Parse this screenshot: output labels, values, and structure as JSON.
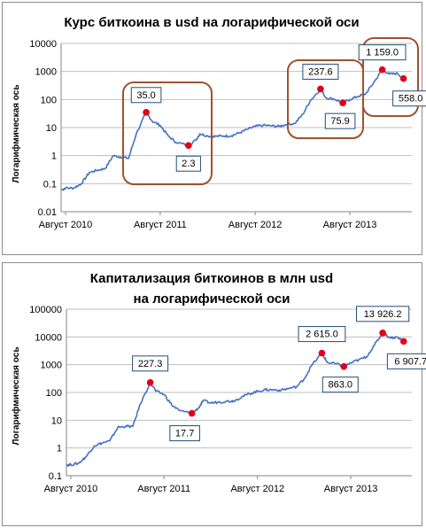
{
  "chart_data": [
    {
      "type": "line",
      "title": "Курс биткоина в usd на логарифической оси",
      "ylabel": "Логарифмическая ось",
      "yscale": "log",
      "ylim": [
        0.01,
        10000
      ],
      "y_ticks": [
        "0.01",
        "0.1",
        "1",
        "10",
        "100",
        "1000",
        "10000"
      ],
      "x_ticks": [
        "Август 2010",
        "Август 2011",
        "Август 2012",
        "Август 2013"
      ],
      "series": [
        {
          "name": "",
          "color": "#4472c4",
          "x": [
            "2010-07-17",
            "2010-08-01",
            "2010-09-01",
            "2010-10-01",
            "2010-11-01",
            "2010-12-01",
            "2011-01-01",
            "2011-02-01",
            "2011-03-01",
            "2011-04-01",
            "2011-05-01",
            "2011-06-08",
            "2011-07-01",
            "2011-08-01",
            "2011-09-01",
            "2011-10-01",
            "2011-11-18",
            "2011-12-15",
            "2012-01-01",
            "2012-02-01",
            "2012-03-01",
            "2012-04-01",
            "2012-05-01",
            "2012-06-01",
            "2012-07-01",
            "2012-08-01",
            "2012-09-01",
            "2012-10-01",
            "2012-11-01",
            "2012-12-01",
            "2013-01-01",
            "2013-02-01",
            "2013-03-01",
            "2013-04-10",
            "2013-05-01",
            "2013-06-01",
            "2013-07-05",
            "2013-08-01",
            "2013-09-01",
            "2013-10-01",
            "2013-11-01",
            "2013-12-04",
            "2014-01-01",
            "2014-02-01",
            "2014-02-24"
          ],
          "y": [
            0.06,
            0.07,
            0.07,
            0.1,
            0.25,
            0.3,
            0.35,
            1.0,
            0.9,
            0.8,
            6.0,
            35.0,
            17.0,
            12.0,
            5.0,
            3.0,
            2.3,
            3.5,
            6.0,
            5.0,
            4.9,
            5.0,
            5.1,
            6.5,
            8.5,
            11.0,
            12.0,
            11.5,
            11.0,
            13.0,
            14.0,
            30.0,
            90.0,
            237.6,
            115.0,
            105.0,
            75.9,
            100.0,
            130.0,
            160.0,
            400.0,
            1159.0,
            800.0,
            850.0,
            558.0
          ]
        }
      ],
      "points": [
        {
          "x": "2011-06-08",
          "y": 35.0,
          "label": "35.0"
        },
        {
          "x": "2011-11-18",
          "y": 2.3,
          "label": "2.3"
        },
        {
          "x": "2013-04-10",
          "y": 237.6,
          "label": "237.6"
        },
        {
          "x": "2013-07-05",
          "y": 75.9,
          "label": "75.9"
        },
        {
          "x": "2013-12-04",
          "y": 1159.0,
          "label": "1 159.0"
        },
        {
          "x": "2014-02-24",
          "y": 558.0,
          "label": "558.0"
        }
      ],
      "point_color": "#e0001b",
      "highlight_color": "#a0522d",
      "highlight_groups": [
        [
          0,
          1
        ],
        [
          2,
          3
        ],
        [
          4,
          5
        ]
      ]
    },
    {
      "type": "line",
      "title_lines": [
        "Капитализация биткоинов в млн usd",
        "на логарифической оси"
      ],
      "ylabel": "Логарифмическая ось",
      "yscale": "log",
      "ylim": [
        0.1,
        100000
      ],
      "y_ticks": [
        "0.1",
        "1",
        "10",
        "100",
        "1000",
        "10000",
        "100000"
      ],
      "x_ticks": [
        "Август 2010",
        "Август 2011",
        "Август 2012",
        "Август 2013"
      ],
      "series": [
        {
          "name": "",
          "color": "#4472c4",
          "x": [
            "2010-07-17",
            "2010-08-01",
            "2010-09-01",
            "2010-10-01",
            "2010-11-01",
            "2010-12-01",
            "2011-01-01",
            "2011-02-01",
            "2011-03-01",
            "2011-04-01",
            "2011-05-01",
            "2011-06-08",
            "2011-07-01",
            "2011-08-01",
            "2011-09-01",
            "2011-10-01",
            "2011-11-18",
            "2011-12-15",
            "2012-01-01",
            "2012-02-01",
            "2012-03-01",
            "2012-04-01",
            "2012-05-01",
            "2012-06-01",
            "2012-07-01",
            "2012-08-01",
            "2012-09-01",
            "2012-10-01",
            "2012-11-01",
            "2012-12-01",
            "2013-01-01",
            "2013-02-01",
            "2013-03-01",
            "2013-04-10",
            "2013-05-01",
            "2013-06-01",
            "2013-07-05",
            "2013-08-01",
            "2013-09-01",
            "2013-10-01",
            "2013-11-01",
            "2013-12-04",
            "2014-01-01",
            "2014-02-01",
            "2014-02-24"
          ],
          "y": [
            0.25,
            0.25,
            0.28,
            0.5,
            1.2,
            1.5,
            1.8,
            5.5,
            6.0,
            6.0,
            40.0,
            227.3,
            110.0,
            85.0,
            35.0,
            22.0,
            17.7,
            28.0,
            50.0,
            42.0,
            45.0,
            48.0,
            50.0,
            70.0,
            90.0,
            110.0,
            125.0,
            125.0,
            120.0,
            140.0,
            160.0,
            320.0,
            950.0,
            2615.0,
            1200.0,
            1100.0,
            863.0,
            1150.0,
            1500.0,
            1900.0,
            5000.0,
            13926.2,
            9500.0,
            9800.0,
            6907.7
          ]
        }
      ],
      "points": [
        {
          "x": "2011-06-08",
          "y": 227.3,
          "label": "227.3"
        },
        {
          "x": "2011-11-18",
          "y": 17.7,
          "label": "17.7"
        },
        {
          "x": "2013-04-10",
          "y": 2615.0,
          "label": "2 615.0"
        },
        {
          "x": "2013-07-05",
          "y": 863.0,
          "label": "863.0"
        },
        {
          "x": "2013-12-04",
          "y": 13926.2,
          "label": "13 926.2"
        },
        {
          "x": "2014-02-24",
          "y": 6907.7,
          "label": "6 907.7"
        }
      ],
      "point_color": "#e0001b"
    }
  ]
}
